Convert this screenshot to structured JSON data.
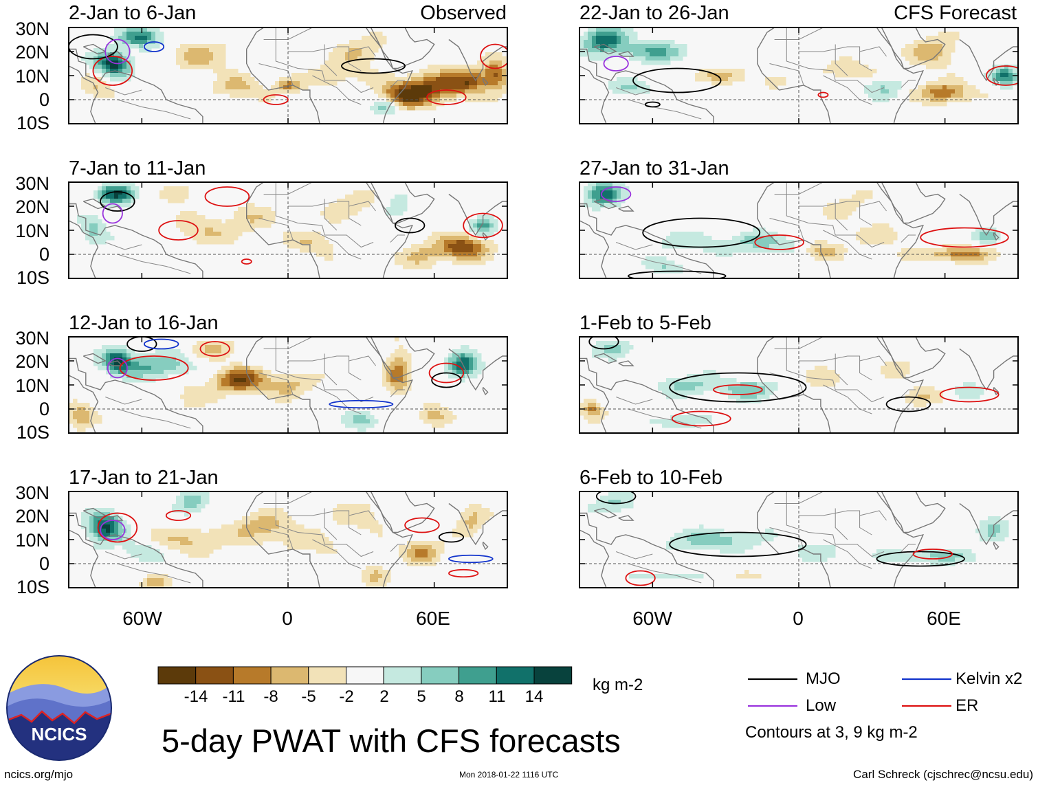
{
  "figure": {
    "title": "5-day PWAT with CFS forecasts",
    "units": "kg m-2",
    "observed_label": "Observed",
    "forecast_label": "CFS Forecast",
    "timestamp": "Mon 2018-01-22 1116 UTC",
    "website": "ncics.org/mjo",
    "author": "Carl Schreck (cjschrec@ncsu.edu)",
    "logo_text": "NCICS"
  },
  "chart_data": {
    "type": "heatmap",
    "variable": "5-day precipitable water anomaly",
    "lat_ticks": [
      "30N",
      "20N",
      "10N",
      "0",
      "10S"
    ],
    "lon_ticks": [
      "60W",
      "0",
      "60E"
    ],
    "panels": [
      {
        "title": "2-Jan to 6-Jan",
        "group": "observed"
      },
      {
        "title": "7-Jan to 11-Jan",
        "group": "observed"
      },
      {
        "title": "12-Jan to 16-Jan",
        "group": "observed"
      },
      {
        "title": "17-Jan to 21-Jan",
        "group": "observed"
      },
      {
        "title": "22-Jan to 26-Jan",
        "group": "forecast"
      },
      {
        "title": "27-Jan to 31-Jan",
        "group": "forecast"
      },
      {
        "title": "1-Feb to 5-Feb",
        "group": "forecast"
      },
      {
        "title": "6-Feb to 10-Feb",
        "group": "forecast"
      }
    ],
    "colorbar": {
      "ticks": [
        "-14",
        "-11",
        "-8",
        "-5",
        "-2",
        "2",
        "5",
        "8",
        "11",
        "14"
      ],
      "colors": [
        "#5c3a0a",
        "#8a5114",
        "#b77a2a",
        "#dcb870",
        "#f2e2b8",
        "#f7f7f7",
        "#c5e9e0",
        "#86cdbf",
        "#3f9f8f",
        "#11716a",
        "#08423d"
      ]
    },
    "contours": {
      "note": "Contours at 3, 9 kg m-2",
      "levels": [
        3,
        9
      ],
      "legend": [
        {
          "label": "MJO",
          "color": "#000000"
        },
        {
          "label": "Low",
          "color": "#9933dd"
        },
        {
          "label": "Kelvin x2",
          "color": "#1133cc"
        },
        {
          "label": "ER",
          "color": "#dd1111"
        }
      ]
    }
  }
}
